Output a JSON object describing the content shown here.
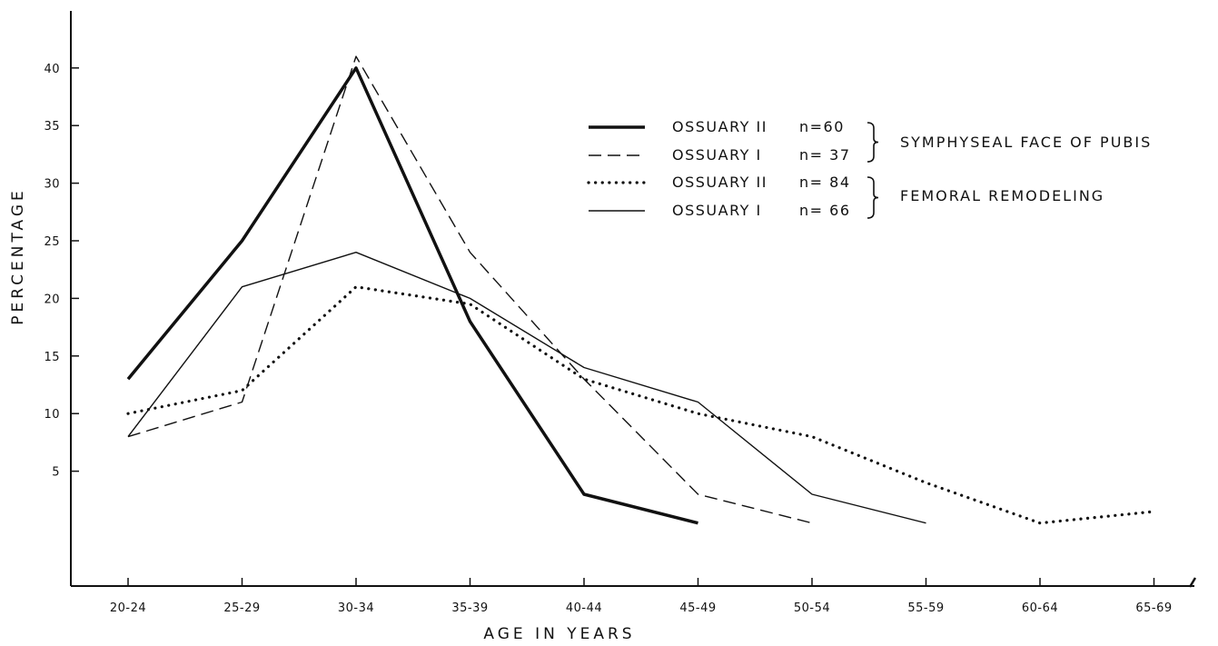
{
  "chart_data": {
    "type": "line",
    "title": "",
    "xlabel": "AGE IN YEARS",
    "ylabel": "PERCENTAGE",
    "categories": [
      "20-24",
      "25-29",
      "30-34",
      "35-39",
      "40-44",
      "45-49",
      "50-54",
      "55-59",
      "60-64",
      "65-69"
    ],
    "ylim": [
      0,
      45
    ],
    "yticks": [
      5,
      10,
      15,
      20,
      25,
      30,
      35,
      40
    ],
    "grid": false,
    "legend_position": "top-right",
    "series": [
      {
        "name": "OSSUARY II",
        "n_label": "n=60",
        "style": "thick-solid",
        "values": [
          13,
          25,
          40,
          18,
          3,
          0.5,
          null,
          null,
          null,
          null
        ]
      },
      {
        "name": "OSSUARY I",
        "n_label": "n= 37",
        "style": "dashed",
        "values": [
          8,
          11,
          41,
          24,
          13,
          3,
          0.5,
          null,
          null,
          null
        ]
      },
      {
        "name": "OSSUARY II",
        "n_label": "n= 84",
        "style": "dotted",
        "values": [
          10,
          12,
          21,
          19.5,
          13,
          10,
          8,
          4,
          0.5,
          1.5
        ]
      },
      {
        "name": "OSSUARY I",
        "n_label": "n= 66",
        "style": "thin-solid",
        "values": [
          8,
          21,
          24,
          20,
          14,
          11,
          3,
          0.5,
          null,
          null
        ]
      }
    ],
    "legend_groups": [
      {
        "label": "SYMPHYSEAL FACE OF PUBIS",
        "series_indices": [
          0,
          1
        ]
      },
      {
        "label": "FEMORAL REMODELING",
        "series_indices": [
          2,
          3
        ]
      }
    ]
  }
}
